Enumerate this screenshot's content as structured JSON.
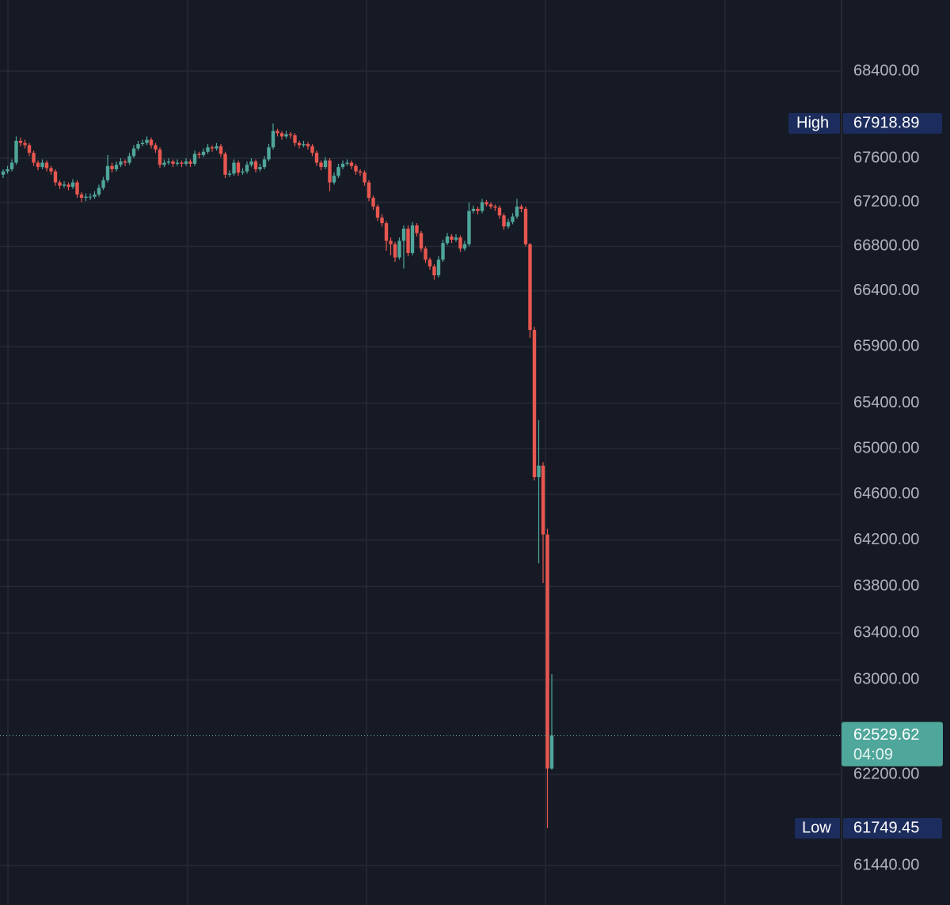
{
  "chart_data": {
    "type": "candlestick",
    "log_scale": true,
    "grid": true,
    "up_color": "#4fa69a",
    "down_color": "#e8574f",
    "ylim": [
      61113,
      69061
    ],
    "yticks": [
      {
        "value": 68400,
        "label": "68400.00"
      },
      {
        "value": 67600,
        "label": "67600.00"
      },
      {
        "value": 67200,
        "label": "67200.00"
      },
      {
        "value": 66800,
        "label": "66800.00"
      },
      {
        "value": 66400,
        "label": "66400.00"
      },
      {
        "value": 65900,
        "label": "65900.00"
      },
      {
        "value": 65400,
        "label": "65400.00"
      },
      {
        "value": 65000,
        "label": "65000.00"
      },
      {
        "value": 64600,
        "label": "64600.00"
      },
      {
        "value": 64200,
        "label": "64200.00"
      },
      {
        "value": 63800,
        "label": "63800.00"
      },
      {
        "value": 63400,
        "label": "63400.00"
      },
      {
        "value": 63000,
        "label": "63000.00"
      },
      {
        "value": 62200,
        "label": "62200.00"
      },
      {
        "value": 61440,
        "label": "61440.00"
      }
    ],
    "high": {
      "label": "High",
      "value": 67918.89
    },
    "low": {
      "label": "Low",
      "value": 61749.45
    },
    "last_price": {
      "value": 62529.62,
      "countdown": "04:09"
    },
    "ohlc": [
      [
        67450,
        67500,
        67420,
        67480
      ],
      [
        67480,
        67530,
        67460,
        67500
      ],
      [
        67500,
        67590,
        67480,
        67560
      ],
      [
        67560,
        67800,
        67540,
        67760
      ],
      [
        67760,
        67790,
        67710,
        67740
      ],
      [
        67740,
        67770,
        67690,
        67720
      ],
      [
        67720,
        67740,
        67620,
        67650
      ],
      [
        67650,
        67670,
        67530,
        67560
      ],
      [
        67560,
        67580,
        67490,
        67520
      ],
      [
        67520,
        67590,
        67500,
        67560
      ],
      [
        67560,
        67580,
        67480,
        67510
      ],
      [
        67510,
        67530,
        67450,
        67480
      ],
      [
        67480,
        67500,
        67350,
        67380
      ],
      [
        67380,
        67400,
        67320,
        67350
      ],
      [
        67350,
        67390,
        67330,
        67360
      ],
      [
        67360,
        67380,
        67310,
        67340
      ],
      [
        67340,
        67410,
        67320,
        67380
      ],
      [
        67380,
        67400,
        67240,
        67270
      ],
      [
        67270,
        67290,
        67200,
        67240
      ],
      [
        67240,
        67280,
        67210,
        67250
      ],
      [
        67250,
        67280,
        67220,
        67250
      ],
      [
        67250,
        67300,
        67230,
        67270
      ],
      [
        67270,
        67360,
        67250,
        67330
      ],
      [
        67330,
        67430,
        67310,
        67400
      ],
      [
        67400,
        67630,
        67380,
        67530
      ],
      [
        67530,
        67560,
        67470,
        67500
      ],
      [
        67500,
        67570,
        67480,
        67540
      ],
      [
        67540,
        67600,
        67520,
        67570
      ],
      [
        67570,
        67590,
        67530,
        67560
      ],
      [
        67560,
        67650,
        67540,
        67620
      ],
      [
        67620,
        67720,
        67600,
        67690
      ],
      [
        67690,
        67760,
        67670,
        67730
      ],
      [
        67730,
        67770,
        67710,
        67740
      ],
      [
        67740,
        67800,
        67720,
        67770
      ],
      [
        67770,
        67790,
        67690,
        67720
      ],
      [
        67720,
        67740,
        67650,
        67680
      ],
      [
        67680,
        67700,
        67510,
        67540
      ],
      [
        67540,
        67590,
        67520,
        67560
      ],
      [
        67560,
        67600,
        67540,
        67570
      ],
      [
        67570,
        67590,
        67520,
        67550
      ],
      [
        67550,
        67590,
        67530,
        67560
      ],
      [
        67560,
        67580,
        67520,
        67550
      ],
      [
        67550,
        67600,
        67530,
        67570
      ],
      [
        67570,
        67590,
        67520,
        67550
      ],
      [
        67550,
        67670,
        67530,
        67640
      ],
      [
        67640,
        67660,
        67600,
        67630
      ],
      [
        67630,
        67690,
        67610,
        67660
      ],
      [
        67660,
        67730,
        67640,
        67700
      ],
      [
        67700,
        67720,
        67660,
        67690
      ],
      [
        67690,
        67740,
        67670,
        67710
      ],
      [
        67710,
        67730,
        67610,
        67640
      ],
      [
        67640,
        67660,
        67420,
        67450
      ],
      [
        67450,
        67490,
        67430,
        67460
      ],
      [
        67460,
        67590,
        67440,
        67560
      ],
      [
        67560,
        67580,
        67440,
        67470
      ],
      [
        67470,
        67510,
        67450,
        67480
      ],
      [
        67480,
        67570,
        67460,
        67540
      ],
      [
        67540,
        67600,
        67520,
        67570
      ],
      [
        67570,
        67590,
        67470,
        67500
      ],
      [
        67500,
        67550,
        67480,
        67520
      ],
      [
        67520,
        67620,
        67500,
        67590
      ],
      [
        67590,
        67730,
        67570,
        67700
      ],
      [
        67700,
        67918.89,
        67680,
        67850
      ],
      [
        67850,
        67870,
        67800,
        67830
      ],
      [
        67830,
        67850,
        67770,
        67800
      ],
      [
        67800,
        67850,
        67780,
        67820
      ],
      [
        67820,
        67840,
        67780,
        67810
      ],
      [
        67810,
        67830,
        67710,
        67740
      ],
      [
        67740,
        67760,
        67690,
        67720
      ],
      [
        67720,
        67760,
        67700,
        67730
      ],
      [
        67730,
        67750,
        67680,
        67710
      ],
      [
        67710,
        67730,
        67620,
        67650
      ],
      [
        67650,
        67670,
        67530,
        67560
      ],
      [
        67560,
        67580,
        67490,
        67520
      ],
      [
        67520,
        67610,
        67500,
        67580
      ],
      [
        67580,
        67600,
        67300,
        67380
      ],
      [
        67380,
        67470,
        67360,
        67440
      ],
      [
        67440,
        67550,
        67420,
        67520
      ],
      [
        67520,
        67580,
        67500,
        67550
      ],
      [
        67550,
        67590,
        67530,
        67560
      ],
      [
        67560,
        67580,
        67500,
        67530
      ],
      [
        67530,
        67550,
        67450,
        67480
      ],
      [
        67480,
        67500,
        67440,
        67470
      ],
      [
        67470,
        67490,
        67350,
        67380
      ],
      [
        67380,
        67400,
        67210,
        67240
      ],
      [
        67240,
        67260,
        67130,
        67160
      ],
      [
        67160,
        67180,
        67030,
        67060
      ],
      [
        67060,
        67090,
        66980,
        67010
      ],
      [
        67010,
        67030,
        66760,
        66850
      ],
      [
        66850,
        66880,
        66720,
        66820
      ],
      [
        66820,
        66840,
        66660,
        66700
      ],
      [
        66700,
        66880,
        66680,
        66850
      ],
      [
        66850,
        66990,
        66600,
        66960
      ],
      [
        66960,
        66990,
        66710,
        66740
      ],
      [
        66740,
        67020,
        66720,
        66990
      ],
      [
        66990,
        67010,
        66890,
        66920
      ],
      [
        66920,
        66940,
        66750,
        66780
      ],
      [
        66780,
        66800,
        66650,
        66680
      ],
      [
        66680,
        66700,
        66590,
        66620
      ],
      [
        66620,
        66640,
        66500,
        66540
      ],
      [
        66540,
        66710,
        66520,
        66680
      ],
      [
        66680,
        66860,
        66660,
        66830
      ],
      [
        66830,
        66920,
        66810,
        66890
      ],
      [
        66890,
        66910,
        66830,
        66860
      ],
      [
        66860,
        66910,
        66840,
        66880
      ],
      [
        66880,
        66900,
        66750,
        66780
      ],
      [
        66780,
        66850,
        66760,
        66820
      ],
      [
        66820,
        67200,
        66800,
        67120
      ],
      [
        67120,
        67170,
        67100,
        67140
      ],
      [
        67140,
        67160,
        67090,
        67120
      ],
      [
        67120,
        67230,
        67100,
        67200
      ],
      [
        67200,
        67220,
        67160,
        67180
      ],
      [
        67180,
        67200,
        67140,
        67160
      ],
      [
        67160,
        67180,
        67120,
        67150
      ],
      [
        67150,
        67170,
        67050,
        67080
      ],
      [
        67080,
        67100,
        66950,
        66980
      ],
      [
        66980,
        67050,
        66960,
        67020
      ],
      [
        67020,
        67100,
        67000,
        67070
      ],
      [
        67070,
        67230,
        67050,
        67160
      ],
      [
        67160,
        67180,
        67110,
        67140
      ],
      [
        67140,
        67160,
        66800,
        66820
      ],
      [
        66820,
        66830,
        65980,
        66050
      ],
      [
        66050,
        66080,
        64720,
        64750
      ],
      [
        64750,
        65250,
        64000,
        64850
      ],
      [
        64850,
        64880,
        63830,
        64250
      ],
      [
        64250,
        64300,
        61749.45,
        62250
      ],
      [
        62250,
        63050,
        62240,
        62529.62
      ]
    ]
  }
}
